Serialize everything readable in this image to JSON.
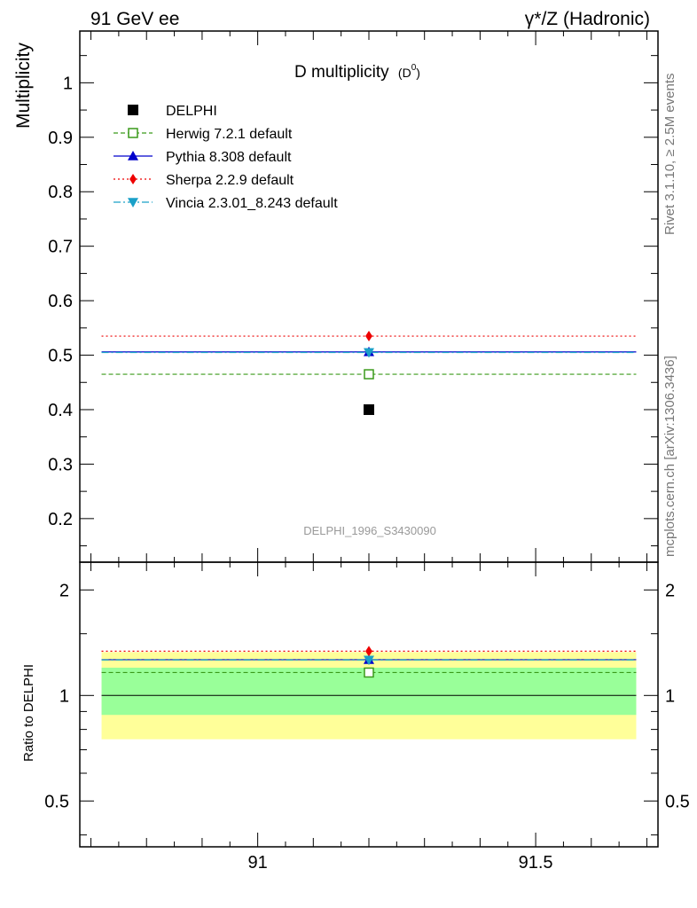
{
  "header": {
    "left_label": "91 GeV ee",
    "right_label": "γ*/Z (Hadronic)"
  },
  "side_notes": {
    "rivet": "Rivet 3.1.10, ≥ 2.5M events",
    "mcplots": "mcplots.cern.ch [arXiv:1306.3436]"
  },
  "chart_data": [
    {
      "type": "scatter",
      "title": "D multiplicity",
      "title_sub": "(D",
      "title_sup": "0",
      "title_close": ")",
      "ylabel": "Multiplicity",
      "analysis_tag": "DELPHI_1996_S3430090",
      "xlim": [
        90.68,
        91.72
      ],
      "ylim": [
        0.12,
        1.095
      ],
      "yticks": [
        0.2,
        0.3,
        0.4,
        0.5,
        0.6,
        0.7,
        0.8,
        0.9,
        1
      ],
      "ytick_labels": [
        "0.2",
        "0.3",
        "0.4",
        "0.5",
        "0.6",
        "0.7",
        "0.8",
        "0.9",
        "1"
      ],
      "bin": [
        90.7,
        91.7
      ],
      "series": [
        {
          "name": "DELPHI",
          "x": 91.2,
          "y": 0.4,
          "color": "#000000",
          "marker": "square",
          "dash": "none"
        },
        {
          "name": "Herwig 7.2.1 default",
          "x": 91.2,
          "y": 0.465,
          "color": "#3a9a1a",
          "marker": "open-square",
          "dash": "5,3"
        },
        {
          "name": "Pythia 8.308 default",
          "x": 91.2,
          "y": 0.506,
          "color": "#0000cc",
          "marker": "triangle-up",
          "dash": "none"
        },
        {
          "name": "Sherpa 2.2.9 default",
          "x": 91.2,
          "y": 0.535,
          "color": "#ee0000",
          "marker": "diamond",
          "dash": "2,3"
        },
        {
          "name": "Vincia 2.3.01_8.243 default",
          "x": 91.2,
          "y": 0.505,
          "color": "#1aa0c8",
          "marker": "triangle-down",
          "dash": "8,3,2,3"
        }
      ]
    },
    {
      "type": "scatter",
      "ylabel": "Ratio to DELPHI",
      "xlim": [
        90.68,
        91.72
      ],
      "ylim": [
        0.37,
        2.4
      ],
      "log_y": true,
      "xticks": [
        91,
        91.5
      ],
      "xtick_labels": [
        "91",
        "91.5"
      ],
      "yticks": [
        0.5,
        1,
        2
      ],
      "ytick_labels": [
        "0.5",
        "1",
        "2"
      ],
      "band_inner": [
        0.88,
        1.2
      ],
      "band_outer": [
        0.75,
        1.33
      ],
      "band_inner_color": "#99ff99",
      "band_outer_color": "#ffff99",
      "series": [
        {
          "name": "DELPHI",
          "y": 1.0,
          "color": "#000000"
        },
        {
          "name": "Herwig 7.2.1 default",
          "y": 1.1625,
          "color": "#3a9a1a"
        },
        {
          "name": "Pythia 8.308 default",
          "y": 1.265,
          "color": "#0000cc"
        },
        {
          "name": "Sherpa 2.2.9 default",
          "y": 1.3375,
          "color": "#ee0000"
        },
        {
          "name": "Vincia 2.3.01_8.243 default",
          "y": 1.2625,
          "color": "#1aa0c8"
        }
      ]
    }
  ]
}
